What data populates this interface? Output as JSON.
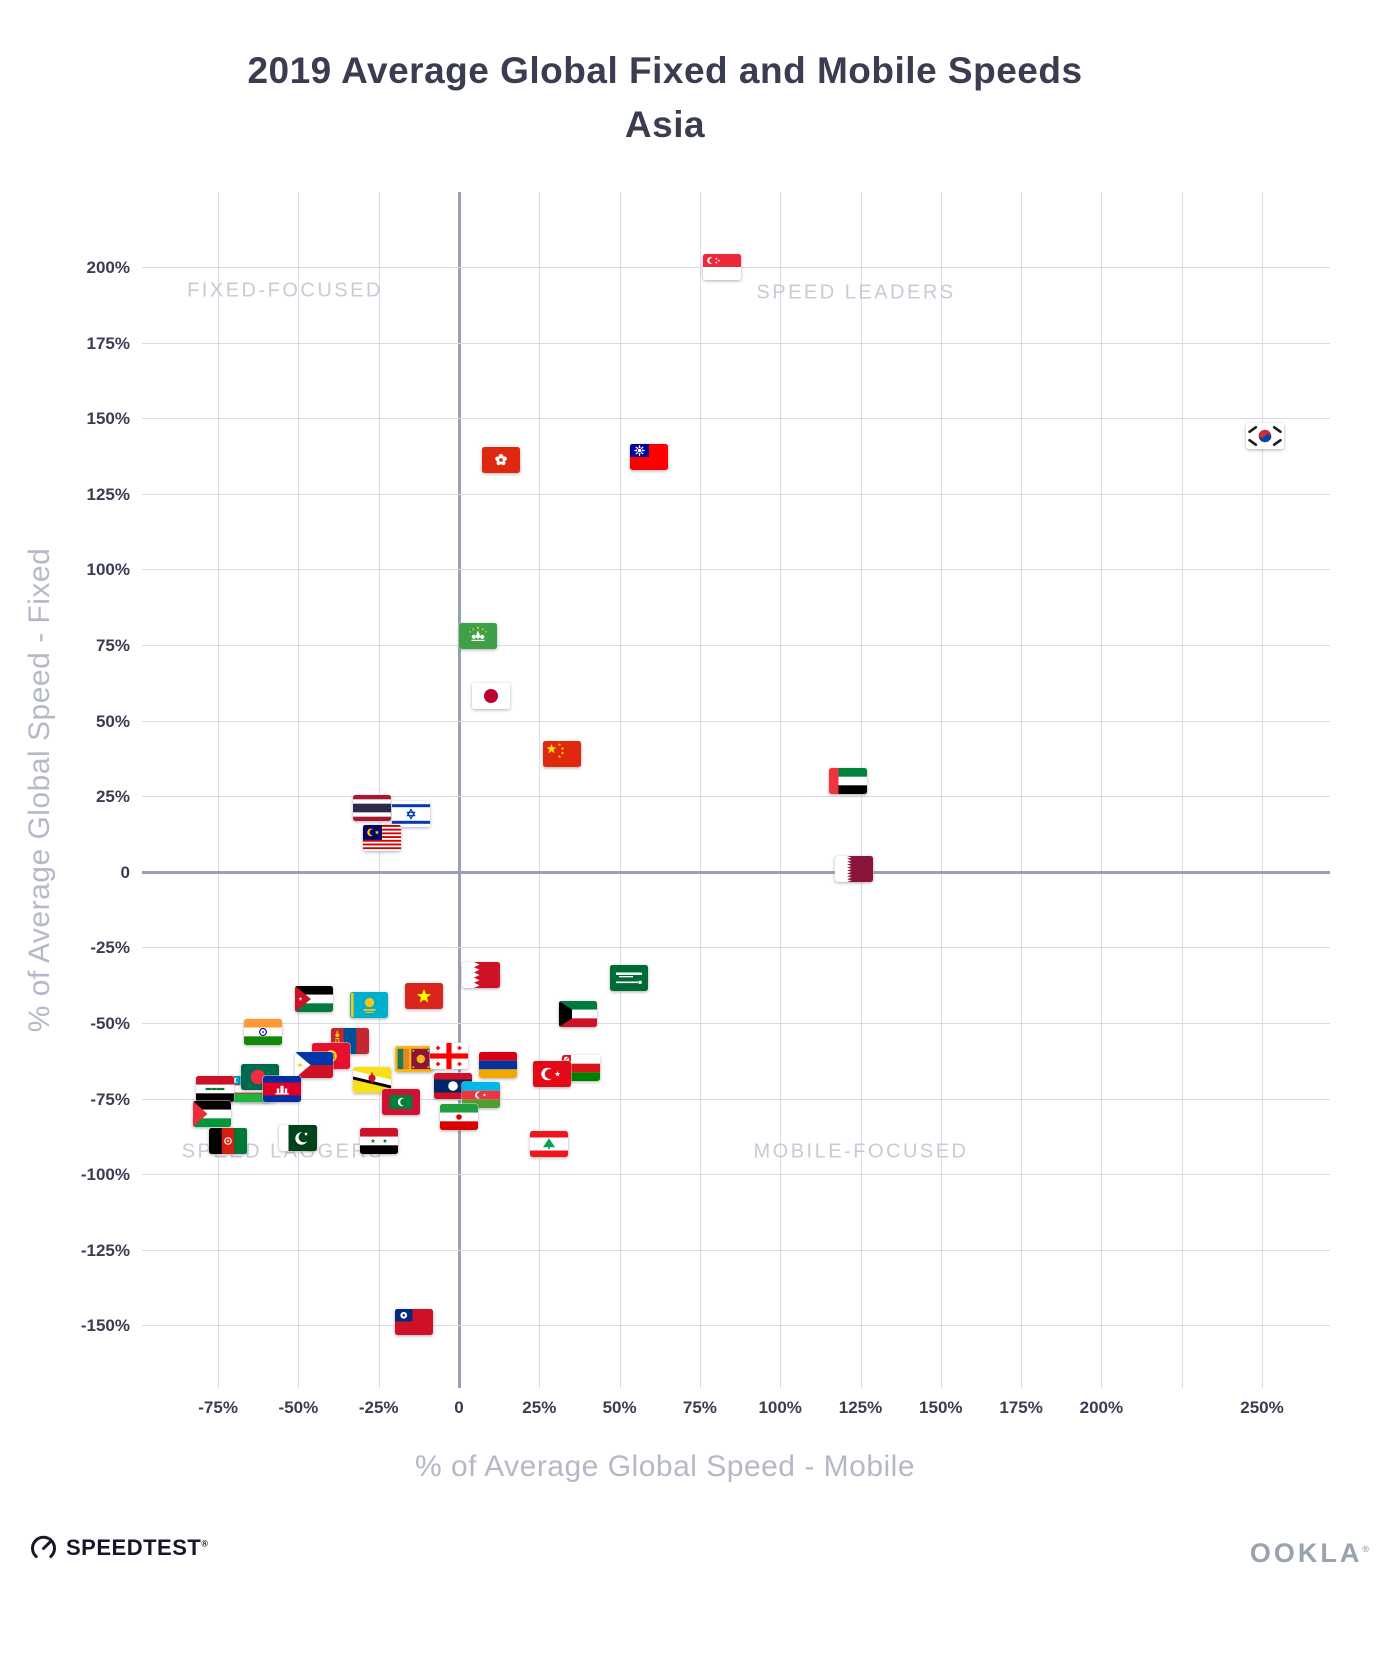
{
  "title": {
    "line1": "2019 Average Global Fixed and Mobile Speeds",
    "line2": "Asia"
  },
  "footer": {
    "speedtest": "SPEEDTEST",
    "speedtest_mark": "®",
    "ookla": "OOKLA",
    "ookla_mark": "®"
  },
  "colors": {
    "title": "#3a3d52",
    "tick": "#3a3d52",
    "quadrant_label": "#c7cbd6",
    "axis_title": "#b5b9c7",
    "gridline": "#d9dce6",
    "zero_axis": "#9aa0b4",
    "background": "#ffffff",
    "ookla_logo": "#9aa2ad",
    "speedtest_logo": "#15162b"
  },
  "chart_data": {
    "type": "scatter",
    "title": "2019 Average Global Fixed and Mobile Speeds",
    "subtitle": "Asia",
    "xlabel": "% of Average Global Speed - Mobile",
    "ylabel": "% of Average Global Speed - Fixed",
    "units": "percent deviation from global average speed",
    "marker": "country-flag",
    "grid": true,
    "legend": "none",
    "xlim": [
      -98,
      271
    ],
    "ylim": [
      -171,
      225
    ],
    "x_tick_values": [
      -75,
      -50,
      -25,
      0,
      25,
      50,
      75,
      100,
      125,
      150,
      175,
      200,
      250
    ],
    "x_tick_labels": [
      "-75%",
      "-50%",
      "-25%",
      "0",
      "25%",
      "50%",
      "75%",
      "100%",
      "125%",
      "150%",
      "175%",
      "200%",
      "250%"
    ],
    "x_grid_values": [
      -75,
      -50,
      -25,
      0,
      25,
      50,
      75,
      100,
      125,
      150,
      175,
      200,
      225,
      250
    ],
    "y_tick_values": [
      200,
      175,
      150,
      125,
      100,
      75,
      50,
      25,
      0,
      -25,
      -50,
      -75,
      -100,
      -125,
      -150
    ],
    "y_tick_labels": [
      "200%",
      "175%",
      "150%",
      "125%",
      "100%",
      "75%",
      "50%",
      "25%",
      "0",
      "-25%",
      "-50%",
      "-75%",
      "-100%",
      "-125%",
      "-150%"
    ],
    "quadrants": {
      "top_left": "FIXED-FOCUSED",
      "top_right": "SPEED LEADERS",
      "bottom_left": "SPEED LAGGERS",
      "bottom_right": "MOBILE-FOCUSED"
    },
    "points": [
      {
        "country": "Singapore",
        "code": "sg",
        "mobile": 82,
        "fixed": 200
      },
      {
        "country": "South Korea",
        "code": "kr",
        "mobile": 251,
        "fixed": 144
      },
      {
        "country": "Taiwan",
        "code": "tw",
        "mobile": 59,
        "fixed": 137
      },
      {
        "country": "Hong Kong",
        "code": "hk",
        "mobile": 13,
        "fixed": 136
      },
      {
        "country": "Macao",
        "code": "mo",
        "mobile": 6,
        "fixed": 78
      },
      {
        "country": "Japan",
        "code": "jp",
        "mobile": 10,
        "fixed": 58
      },
      {
        "country": "China",
        "code": "cn",
        "mobile": 32,
        "fixed": 39
      },
      {
        "country": "United Arab Emirates",
        "code": "ae",
        "mobile": 121,
        "fixed": 30
      },
      {
        "country": "Qatar",
        "code": "qa",
        "mobile": 123,
        "fixed": 1
      },
      {
        "country": "Thailand",
        "code": "th",
        "mobile": -27,
        "fixed": 21
      },
      {
        "country": "Israel",
        "code": "il",
        "mobile": -15,
        "fixed": 19
      },
      {
        "country": "Malaysia",
        "code": "my",
        "mobile": -24,
        "fixed": 11
      },
      {
        "country": "Bahrain",
        "code": "bh",
        "mobile": 7,
        "fixed": -34
      },
      {
        "country": "Saudi Arabia",
        "code": "sa",
        "mobile": 53,
        "fixed": -35
      },
      {
        "country": "Kuwait",
        "code": "kw",
        "mobile": 37,
        "fixed": -47
      },
      {
        "country": "Jordan",
        "code": "jo",
        "mobile": -45,
        "fixed": -42
      },
      {
        "country": "Kazakhstan",
        "code": "kz",
        "mobile": -28,
        "fixed": -44
      },
      {
        "country": "Vietnam",
        "code": "vn",
        "mobile": -11,
        "fixed": -41
      },
      {
        "country": "India",
        "code": "in",
        "mobile": -61,
        "fixed": -53
      },
      {
        "country": "Mongolia",
        "code": "mn",
        "mobile": -34,
        "fixed": -56
      },
      {
        "country": "Kyrgyzstan",
        "code": "kg",
        "mobile": -40,
        "fixed": -61
      },
      {
        "country": "Philippines",
        "code": "ph",
        "mobile": -45,
        "fixed": -64
      },
      {
        "country": "Sri Lanka",
        "code": "lk",
        "mobile": -14,
        "fixed": -62
      },
      {
        "country": "Georgia",
        "code": "ge",
        "mobile": -3,
        "fixed": -61
      },
      {
        "country": "Armenia",
        "code": "am",
        "mobile": 12,
        "fixed": -64
      },
      {
        "country": "Oman",
        "code": "om",
        "mobile": 38,
        "fixed": -65
      },
      {
        "country": "Turkey",
        "code": "tr",
        "mobile": 29,
        "fixed": -67
      },
      {
        "country": "Nepal",
        "code": "np",
        "mobile": -63,
        "fixed": -72
      },
      {
        "country": "Uzbekistan",
        "code": "uz",
        "mobile": -65,
        "fixed": -72
      },
      {
        "country": "Iraq",
        "code": "iq",
        "mobile": -76,
        "fixed": -72
      },
      {
        "country": "Brunei",
        "code": "bn",
        "mobile": -27,
        "fixed": -69
      },
      {
        "country": "Bangladesh",
        "code": "bd",
        "mobile": -62,
        "fixed": -68
      },
      {
        "country": "Cambodia",
        "code": "kh",
        "mobile": -55,
        "fixed": -72
      },
      {
        "country": "Laos",
        "code": "la",
        "mobile": -2,
        "fixed": -71
      },
      {
        "country": "Azerbaijan",
        "code": "az",
        "mobile": 7,
        "fixed": -74
      },
      {
        "country": "Maldives",
        "code": "mv",
        "mobile": -18,
        "fixed": -76
      },
      {
        "country": "Palestine",
        "code": "ps",
        "mobile": -77,
        "fixed": -80
      },
      {
        "country": "Iran",
        "code": "ir",
        "mobile": 0,
        "fixed": -81
      },
      {
        "country": "Afghanistan",
        "code": "af",
        "mobile": -72,
        "fixed": -89
      },
      {
        "country": "Pakistan",
        "code": "pk",
        "mobile": -50,
        "fixed": -88
      },
      {
        "country": "Syria",
        "code": "sy",
        "mobile": -25,
        "fixed": -89
      },
      {
        "country": "Lebanon",
        "code": "lb",
        "mobile": 28,
        "fixed": -90
      },
      {
        "country": "Myanmar",
        "code": "mm",
        "mobile": -14,
        "fixed": -149
      }
    ]
  }
}
